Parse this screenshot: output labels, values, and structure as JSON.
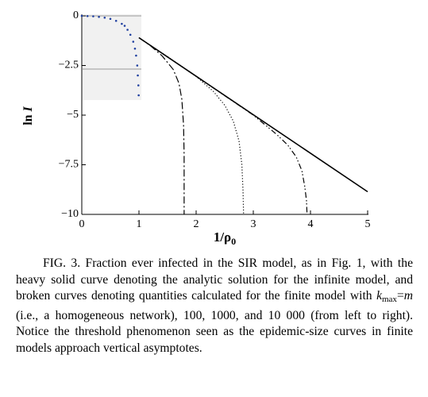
{
  "chart_data": {
    "type": "line",
    "xlabel": {
      "text": "1/ρ",
      "sub": "0"
    },
    "ylabel": {
      "text": "ln ",
      "var": "I"
    },
    "xlim": [
      0,
      5
    ],
    "ylim": [
      -10,
      0
    ],
    "xticks": [
      0,
      1,
      2,
      3,
      4,
      5
    ],
    "yticks": [
      0,
      {
        "value": -2.5,
        "label": "−2.5"
      },
      {
        "value": -5,
        "label": "−5"
      },
      {
        "value": -7.5,
        "label": "−7.5"
      },
      {
        "value": -10,
        "label": "−10"
      }
    ],
    "series": [
      {
        "dash": "solid",
        "color": "#000000",
        "x": [
          1,
          5
        ],
        "values": [
          -1.1,
          -8.86
        ]
      },
      {
        "dash": "dashdot",
        "color": "#000000",
        "x": [
          1,
          1.2,
          1.4,
          1.6,
          1.7,
          1.75,
          1.78,
          1.79,
          1.79
        ],
        "values": [
          -1.1,
          -1.5,
          -2.0,
          -2.7,
          -3.4,
          -4.2,
          -5.5,
          -7,
          -10
        ]
      },
      {
        "dash": "dotted",
        "color": "#000000",
        "x": [
          1,
          1.5,
          2,
          2.3,
          2.5,
          2.65,
          2.75,
          2.8,
          2.82,
          2.83
        ],
        "values": [
          -1.1,
          -2.05,
          -3.05,
          -3.8,
          -4.5,
          -5.3,
          -6.3,
          -7.5,
          -8.8,
          -10
        ]
      },
      {
        "dash": "dashdotdot",
        "color": "#000000",
        "x": [
          1,
          2,
          3,
          3.4,
          3.6,
          3.75,
          3.85,
          3.9,
          3.93,
          3.94
        ],
        "values": [
          -1.1,
          -3.04,
          -5.0,
          -5.95,
          -6.5,
          -7.1,
          -7.8,
          -8.6,
          -9.3,
          -10
        ]
      }
    ],
    "inset": {
      "type": "scatter",
      "color": "#1f3fa0",
      "x": [
        0,
        0.1,
        0.2,
        0.3,
        0.4,
        0.5,
        0.6,
        0.7,
        0.75,
        0.8,
        0.85,
        0.9,
        0.93,
        0.95,
        0.97,
        0.98,
        0.99,
        0.995
      ],
      "values": [
        0,
        -0.01,
        -0.02,
        -0.05,
        -0.09,
        -0.15,
        -0.25,
        -0.4,
        -0.5,
        -0.7,
        -0.95,
        -1.3,
        -1.65,
        -2.0,
        -2.5,
        -3.0,
        -3.5,
        -4.0
      ]
    }
  },
  "caption": {
    "part1": "FIG. 3. Fraction ever infected in the SIR model, as in Fig. 1, with the heavy solid curve denoting the analytic solution for the infinite model, and broken curves denoting quantities calculated for the finite model with ",
    "k": "k",
    "max": "max",
    "eq": "=",
    "m": "m",
    "part2": " (i.e., a homogeneous network), 100, 1000, and 10 000 (from left to right). Notice the threshold phenomenon seen as the epidemic-size curves in finite models approach vertical asymptotes."
  }
}
